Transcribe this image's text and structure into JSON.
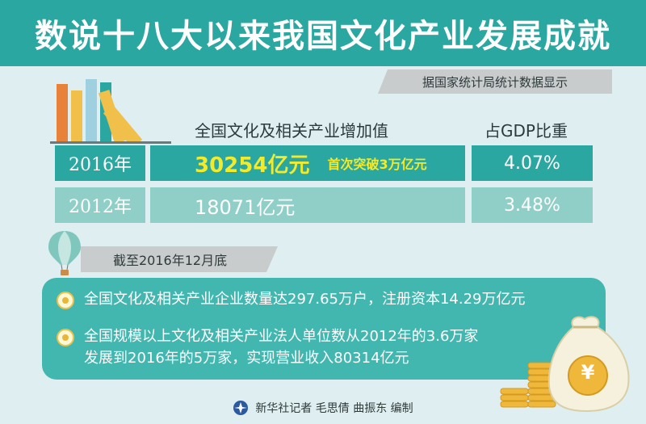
{
  "title": "数说十八大以来我国文化产业发展成就",
  "source_note": "据国家统计局统计数据显示",
  "table": {
    "headers": {
      "value": "全国文化及相关产业增加值",
      "share": "占GDP比重"
    },
    "rows": [
      {
        "year": "2016年",
        "value": "30254亿元",
        "note": "首次突破3万亿元",
        "share": "4.07%"
      },
      {
        "year": "2012年",
        "value": "18071亿元",
        "note": "",
        "share": "3.48%"
      }
    ]
  },
  "as_of": "截至2016年12月底",
  "facts": [
    {
      "lines": [
        "全国文化及相关产业企业数量达297.65万户，注册资本14.29万亿元"
      ]
    },
    {
      "lines": [
        "全国规模以上文化及相关产业法人单位数从2012年的3.6万家",
        "发展到2016年的5万家，实现营业收入80314亿元"
      ]
    }
  ],
  "illustration": {
    "coin_symbol": "¥"
  },
  "footer": "新华社记者 毛思倩 曲振东 编制",
  "colors": {
    "teal": "#2aa7a0",
    "light_teal": "#8fcfc7",
    "highlight_yellow": "#f2ea2a",
    "background": "#dfeef0"
  }
}
